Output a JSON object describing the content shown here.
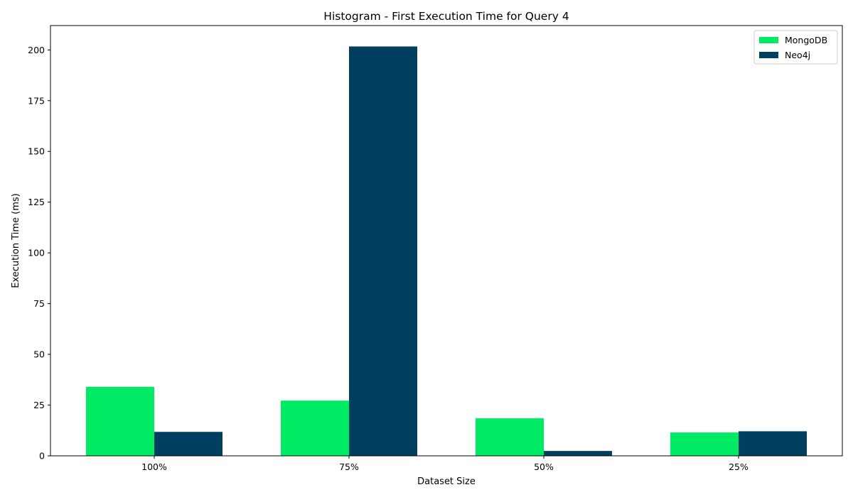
{
  "chart_data": {
    "type": "bar",
    "title": "Histogram - First Execution Time for Query 4",
    "xlabel": "Dataset Size",
    "ylabel": "Execution Time (ms)",
    "categories": [
      "100%",
      "75%",
      "50%",
      "25%"
    ],
    "series": [
      {
        "name": "MongoDB",
        "color": "#00eb64",
        "values": [
          34,
          27.2,
          18.5,
          11.5
        ]
      },
      {
        "name": "Neo4j",
        "color": "#003f5f",
        "values": [
          11.8,
          201.7,
          2.4,
          12.1
        ]
      }
    ],
    "ylim": [
      0,
      212
    ],
    "yticks": [
      0,
      25,
      50,
      75,
      100,
      125,
      150,
      175,
      200
    ],
    "grid": false,
    "legend_position": "top-right"
  }
}
